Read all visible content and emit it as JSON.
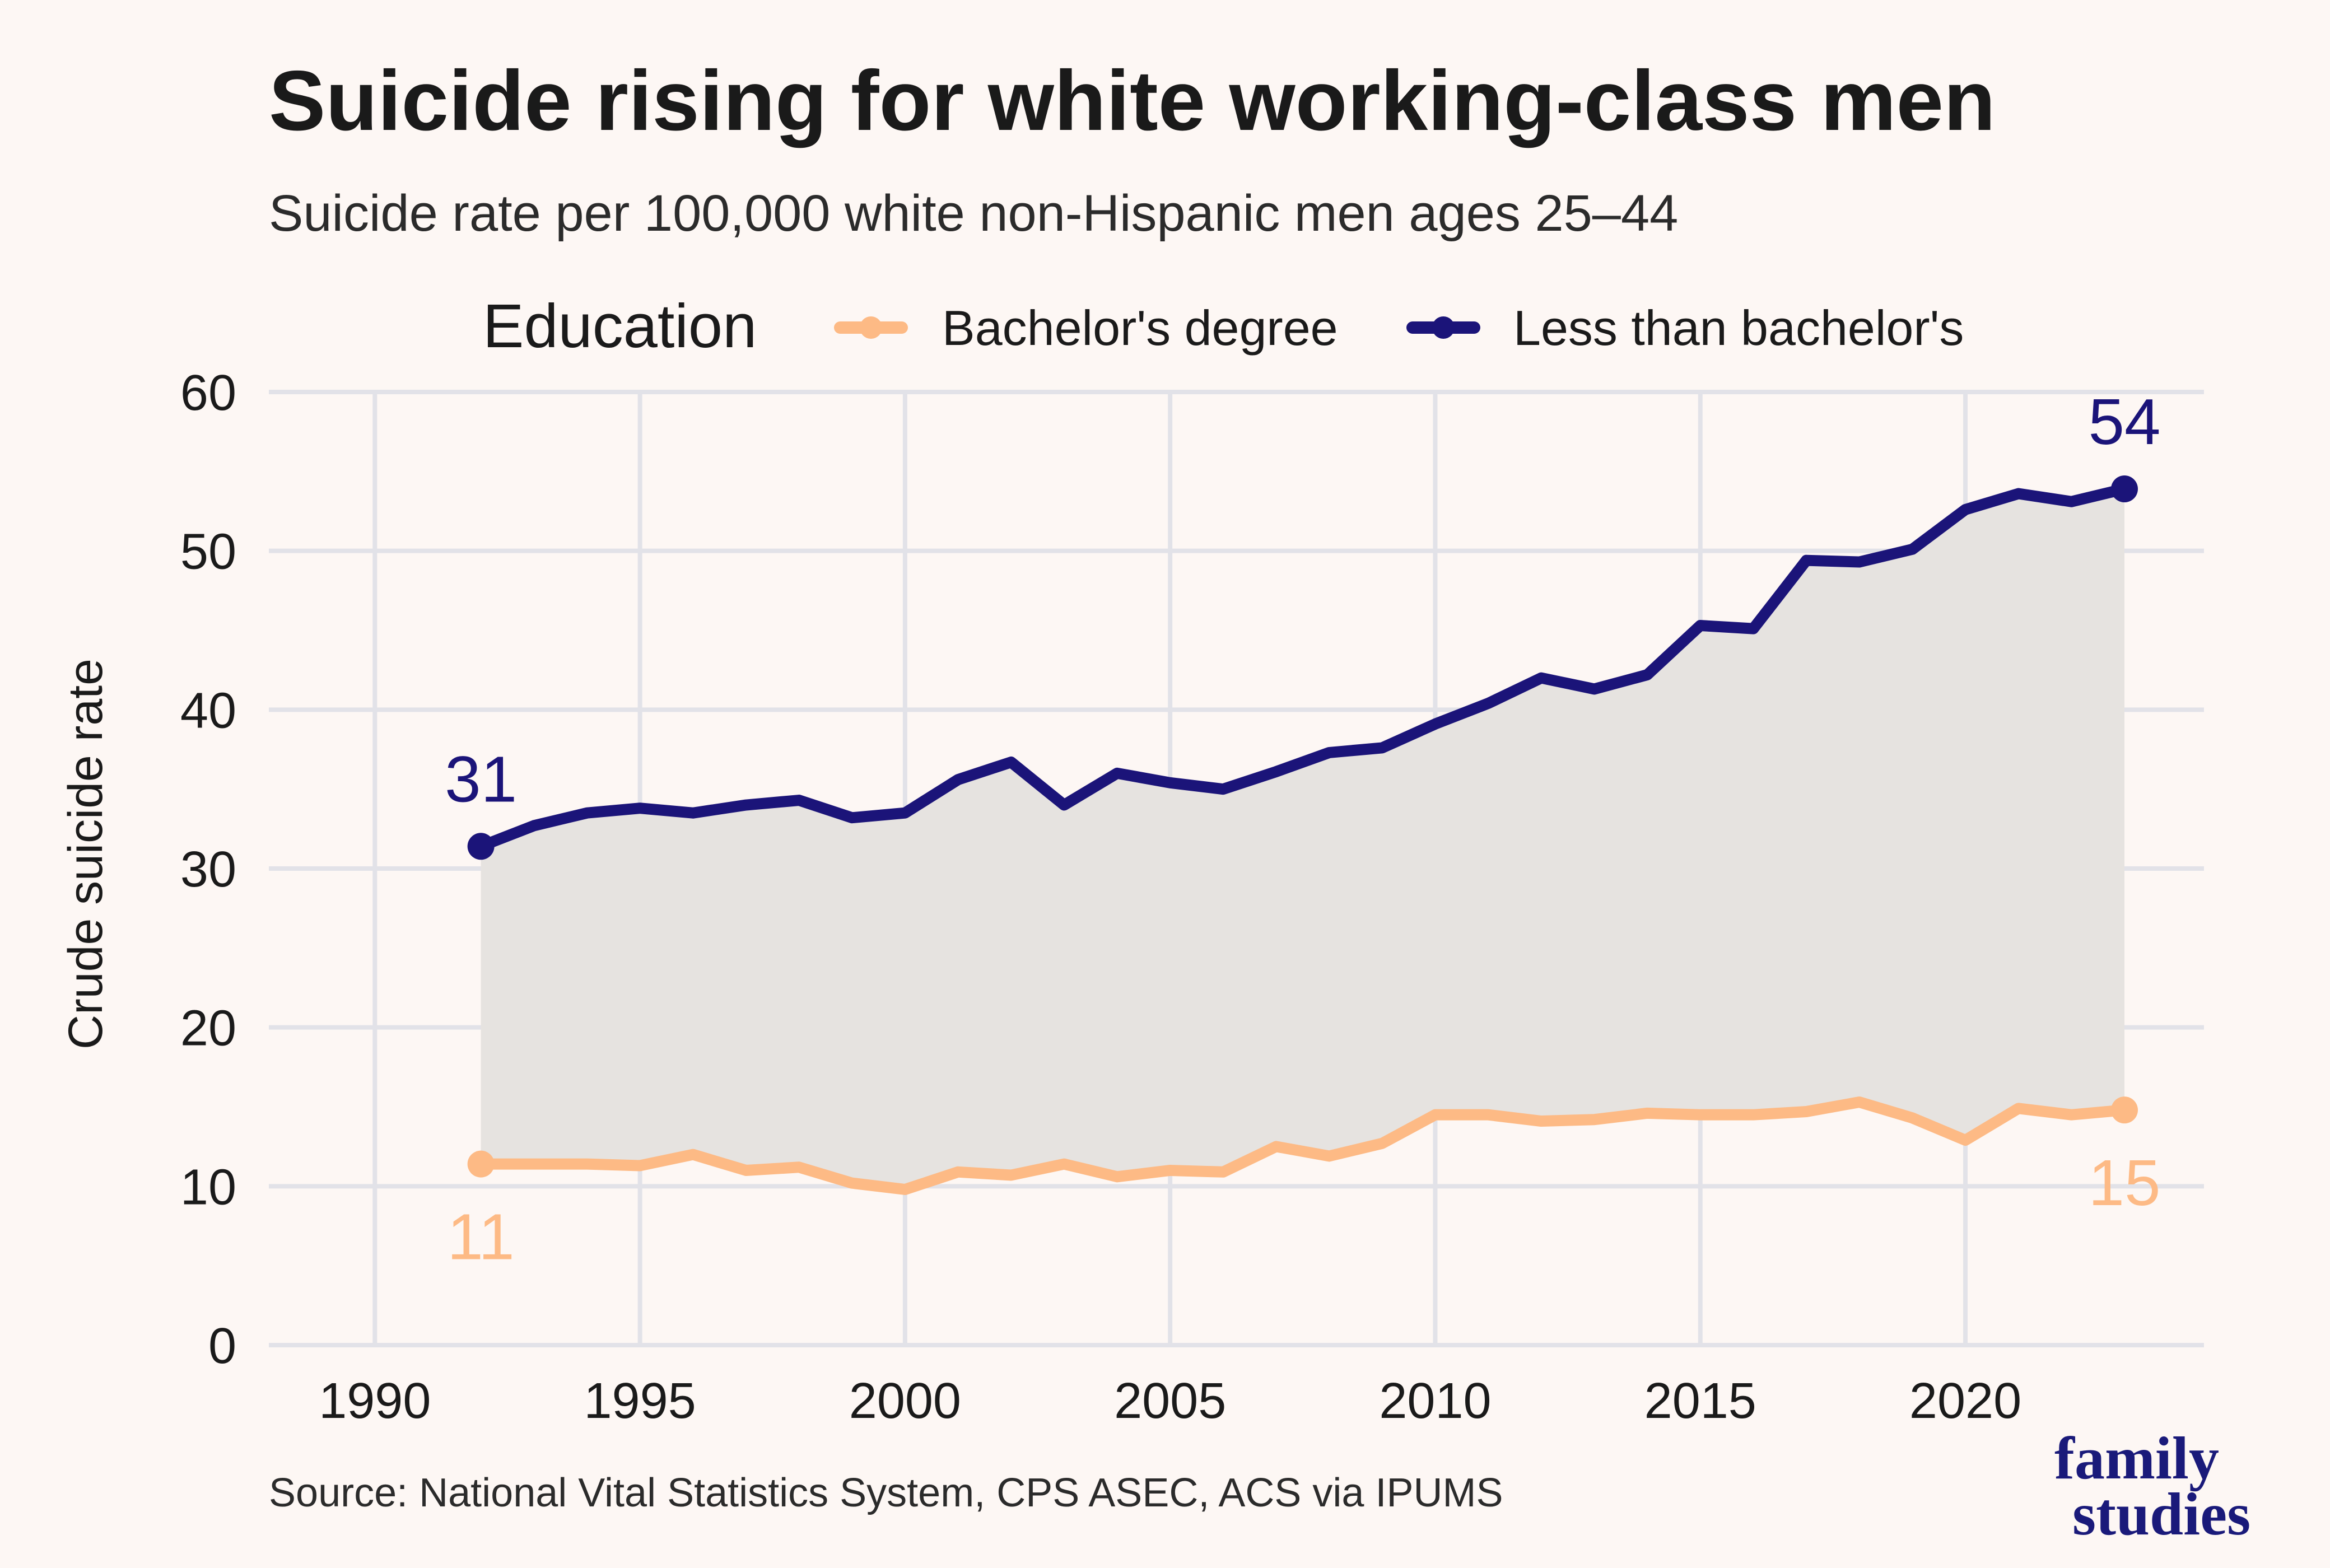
{
  "title": "Suicide rising for white working-class men",
  "subtitle": "Suicide rate per 100,000 white non-Hispanic men ages 25–44",
  "source": "Source: National Vital Statistics System, CPS ASEC, ACS via IPUMS",
  "logo": {
    "line1": "family",
    "line2": "studies"
  },
  "legend": {
    "title": "Education",
    "items": [
      {
        "label": "Bachelor's degree",
        "color": "#fdba85"
      },
      {
        "label": "Less than bachelor's",
        "color": "#1b1479"
      }
    ]
  },
  "chart_data": {
    "type": "line",
    "title": "Suicide rising for white working-class men",
    "subtitle": "Suicide rate per 100,000 white non-Hispanic men ages 25–44",
    "xlabel": "",
    "ylabel": "Crude suicide rate",
    "xlim": [
      1988,
      2024.5
    ],
    "ylim": [
      0,
      60
    ],
    "x_ticks": [
      1990,
      1995,
      2000,
      2005,
      2010,
      2015,
      2020
    ],
    "y_ticks": [
      0,
      10,
      20,
      30,
      40,
      50,
      60
    ],
    "grid": true,
    "legend_position": "top",
    "shaded_gap_between_series": true,
    "x": [
      1992,
      1993,
      1994,
      1995,
      1996,
      1997,
      1998,
      1999,
      2000,
      2001,
      2002,
      2003,
      2004,
      2005,
      2006,
      2007,
      2008,
      2009,
      2010,
      2011,
      2012,
      2013,
      2014,
      2015,
      2016,
      2017,
      2018,
      2019,
      2020,
      2021,
      2022,
      2023
    ],
    "series": [
      {
        "name": "Bachelor's degree",
        "color": "#fdba85",
        "values": [
          11.4,
          11.4,
          11.4,
          11.3,
          12.0,
          11.0,
          11.2,
          10.2,
          9.8,
          10.9,
          10.7,
          11.4,
          10.6,
          11.0,
          10.9,
          12.5,
          11.9,
          12.7,
          14.5,
          14.5,
          14.1,
          14.2,
          14.6,
          14.5,
          14.5,
          14.7,
          15.3,
          14.3,
          12.9,
          14.9,
          14.5,
          14.8
        ],
        "start_label": "11",
        "end_label": "15"
      },
      {
        "name": "Less than bachelor's",
        "color": "#1b1479",
        "values": [
          31.4,
          32.7,
          33.5,
          33.8,
          33.5,
          34.0,
          34.3,
          33.2,
          33.5,
          35.6,
          36.7,
          34.0,
          36.0,
          35.4,
          35.0,
          36.1,
          37.3,
          37.6,
          39.1,
          40.4,
          42.0,
          41.3,
          42.2,
          45.3,
          45.1,
          49.4,
          49.3,
          50.1,
          52.6,
          53.6,
          53.1,
          53.9
        ],
        "start_label": "31",
        "end_label": "54"
      }
    ]
  }
}
